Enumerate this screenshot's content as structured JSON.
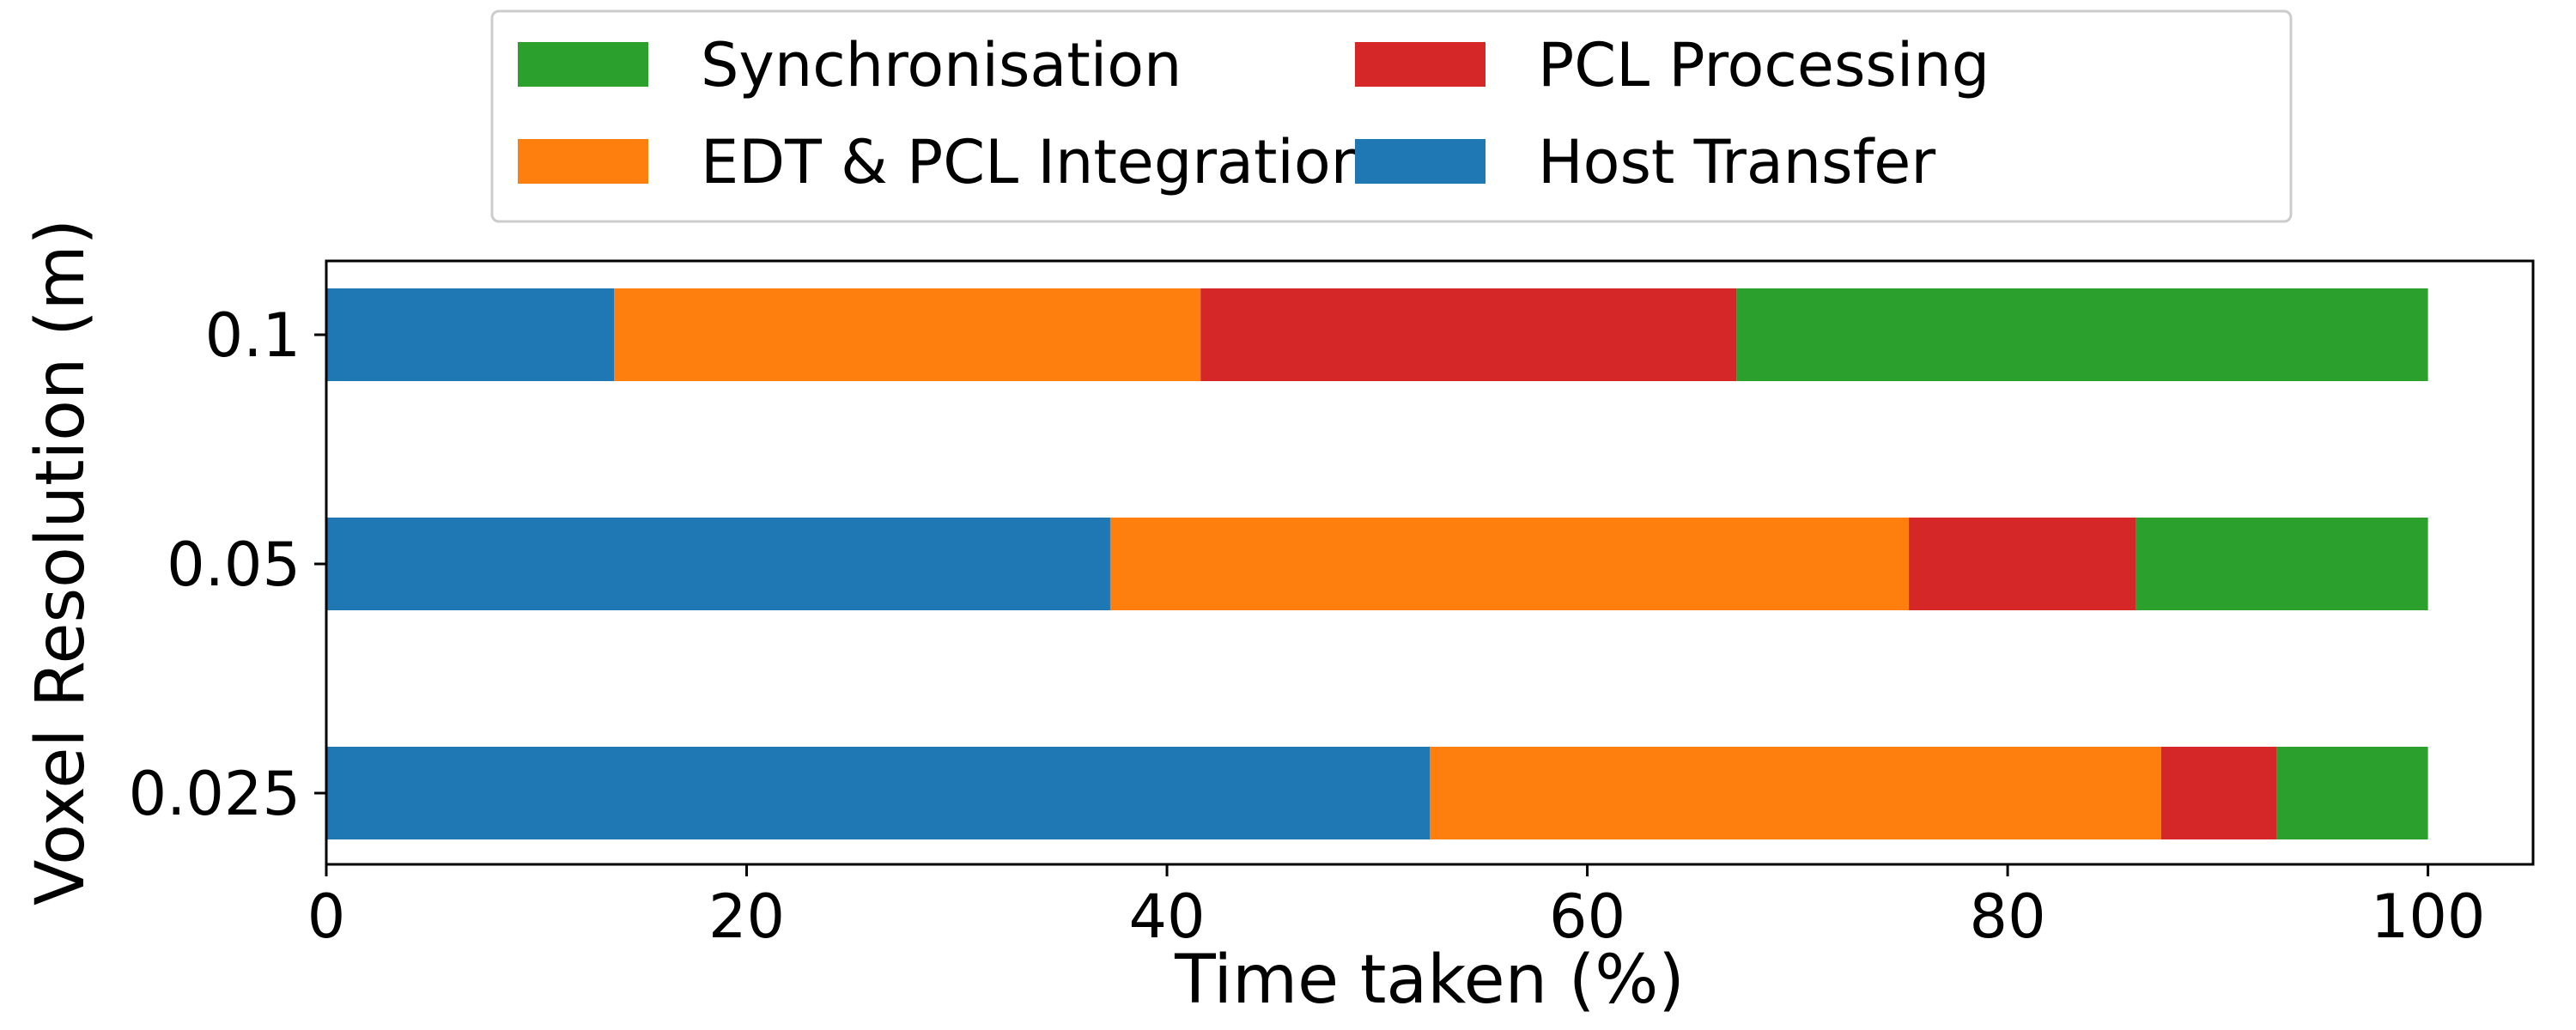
{
  "chart_data": {
    "type": "bar",
    "orientation": "horizontal",
    "stacked": true,
    "xlabel": "Time taken (%)",
    "ylabel": "Voxel Resolution (m)",
    "xlim": [
      0,
      105
    ],
    "x_ticks": [
      0,
      20,
      40,
      60,
      80,
      100
    ],
    "grid": false,
    "legend_position": "top-center",
    "categories": [
      "0.1",
      "0.05",
      "0.025"
    ],
    "series": [
      {
        "name": "Host Transfer",
        "color": "#1f77b4",
        "values": [
          13.7,
          37.3,
          52.5
        ]
      },
      {
        "name": "EDT & PCL Integration",
        "color": "#ff7f0e",
        "values": [
          27.9,
          38.0,
          34.8
        ]
      },
      {
        "name": "PCL Processing",
        "color": "#d62728",
        "values": [
          25.5,
          10.8,
          5.5
        ]
      },
      {
        "name": "Synchronisation",
        "color": "#2ca02c",
        "values": [
          32.9,
          13.9,
          7.2
        ]
      }
    ],
    "legend_order": [
      "Synchronisation",
      "EDT & PCL Integration",
      "PCL Processing",
      "Host Transfer"
    ]
  }
}
